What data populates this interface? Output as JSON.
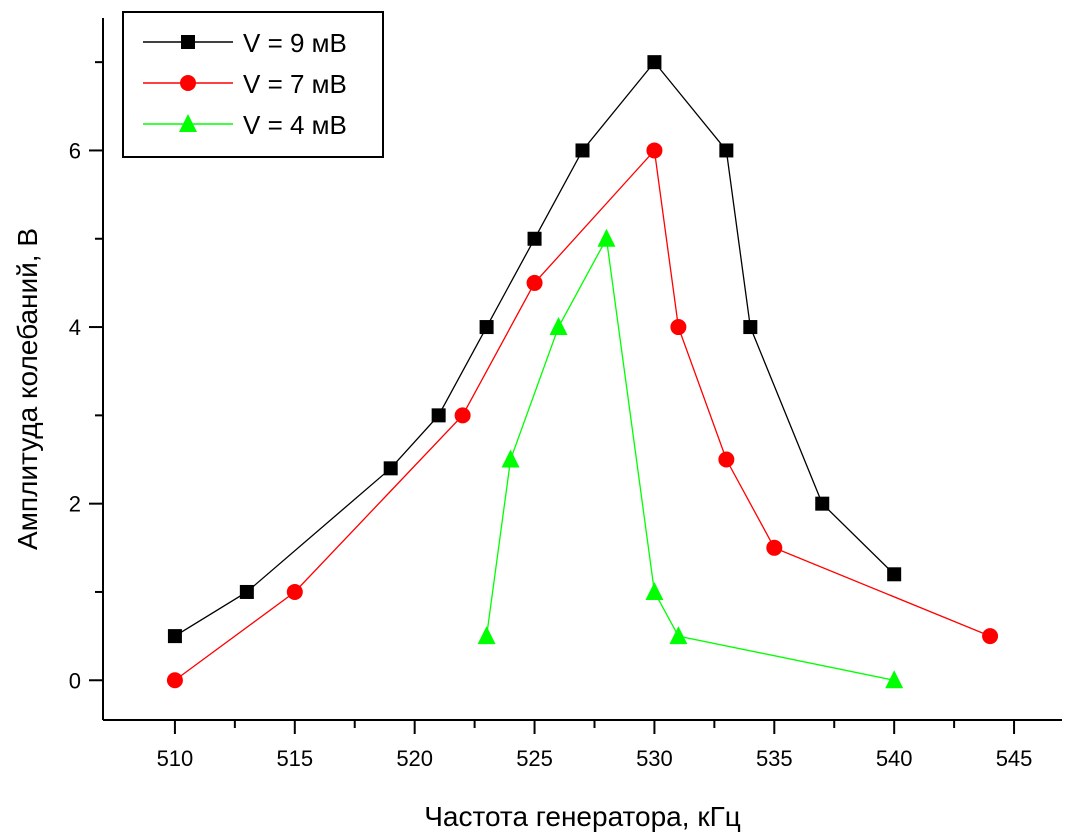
{
  "chart_data": {
    "type": "line",
    "title": "",
    "xlabel": "Частота генератора, кГц",
    "ylabel": "Амплитуда колебаний, В",
    "xlim": [
      507,
      547
    ],
    "ylim": [
      -0.45,
      7.5
    ],
    "xticks": [
      510,
      515,
      520,
      525,
      530,
      535,
      540,
      545
    ],
    "yticks": [
      0,
      2,
      4,
      6
    ],
    "x_minor_step": 2.5,
    "y_minor_step": 1,
    "grid": false,
    "legend_position": "top-left",
    "series": [
      {
        "name": "V = 9 мВ",
        "color": "#000000",
        "marker": "square",
        "x": [
          510,
          513,
          519,
          521,
          523,
          525,
          527,
          530,
          533,
          534,
          537,
          540
        ],
        "y": [
          0.5,
          1.0,
          2.4,
          3.0,
          4.0,
          5.0,
          6.0,
          7.0,
          6.0,
          4.0,
          2.0,
          1.2
        ]
      },
      {
        "name": "V = 7 мВ",
        "color": "#ff0000",
        "marker": "circle",
        "x": [
          510,
          515,
          522,
          525,
          530,
          531,
          533,
          535,
          544
        ],
        "y": [
          0.0,
          1.0,
          3.0,
          4.5,
          6.0,
          4.0,
          2.5,
          1.5,
          0.5
        ]
      },
      {
        "name": "V = 4 мВ",
        "color": "#00ff00",
        "marker": "triangle",
        "x": [
          523,
          524,
          526,
          528,
          530,
          531,
          540
        ],
        "y": [
          0.5,
          2.5,
          4.0,
          5.0,
          1.0,
          0.5,
          0.0
        ]
      }
    ]
  }
}
